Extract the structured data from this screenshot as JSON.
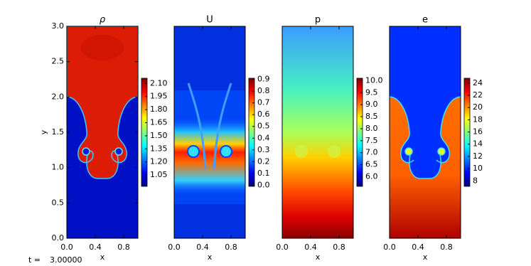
{
  "chart_data": [
    {
      "type": "heatmap",
      "title": "ρ",
      "xlabel": "x",
      "ylabel": "y",
      "colormap": "jet",
      "xlim": [
        0,
        1
      ],
      "ylim": [
        0,
        3
      ],
      "xticks": [
        {
          "value": 0,
          "label": "0.0"
        },
        {
          "value": 0.4,
          "label": "0.4"
        },
        {
          "value": 0.8,
          "label": "0.8"
        }
      ],
      "yticks": [
        {
          "value": 0,
          "label": "0.0"
        },
        0.5,
        {
          "value": 1,
          "label": "1.0"
        },
        1.5,
        {
          "value": 2,
          "label": "2.0"
        },
        2.5,
        {
          "value": 3,
          "label": "3.0"
        }
      ],
      "clim": [
        0.92,
        2.16
      ],
      "cticks": [
        {
          "value": 2.1,
          "label": "2.10"
        },
        1.95,
        {
          "value": 1.8,
          "label": "1.80"
        },
        1.65,
        {
          "value": 1.5,
          "label": "1.50"
        },
        1.35,
        {
          "value": 1.2,
          "label": "1.20"
        },
        1.05
      ]
    },
    {
      "type": "heatmap",
      "title": "U",
      "xlabel": "x",
      "colormap": "jet",
      "xlim": [
        0,
        1
      ],
      "ylim": [
        0,
        3
      ],
      "xticks": [
        {
          "value": 0,
          "label": "0.0"
        },
        {
          "value": 0.4,
          "label": "0.4"
        },
        {
          "value": 0.8,
          "label": "0.8"
        }
      ],
      "clim": [
        -0.01,
        0.91
      ],
      "cticks": [
        0.9,
        0.8,
        0.7,
        0.6,
        0.5,
        0.4,
        0.3,
        0.2,
        0.1,
        {
          "value": 0,
          "label": "0.0"
        }
      ]
    },
    {
      "type": "heatmap",
      "title": "p",
      "xlabel": "x",
      "colormap": "jet",
      "xlim": [
        0,
        1
      ],
      "ylim": [
        0,
        3
      ],
      "xticks": [
        {
          "value": 0,
          "label": "0.0"
        },
        {
          "value": 0.4,
          "label": "0.4"
        },
        {
          "value": 0.8,
          "label": "0.8"
        }
      ],
      "clim": [
        5.6,
        10.1
      ],
      "cticks": [
        {
          "value": 10,
          "label": "10.0"
        },
        9.5,
        {
          "value": 9,
          "label": "9.0"
        },
        8.5,
        {
          "value": 8,
          "label": "8.0"
        },
        7.5,
        {
          "value": 7,
          "label": "7.0"
        },
        6.5,
        {
          "value": 6,
          "label": "6.0"
        }
      ]
    },
    {
      "type": "heatmap",
      "title": "e",
      "xlabel": "x",
      "colormap": "jet",
      "xlim": [
        0,
        1
      ],
      "ylim": [
        0,
        3
      ],
      "xticks": [
        {
          "value": 0,
          "label": "0.0"
        },
        {
          "value": 0.4,
          "label": "0.4"
        },
        {
          "value": 0.8,
          "label": "0.8"
        }
      ],
      "clim": [
        7.1,
        24.8
      ],
      "cticks": [
        24,
        22,
        20,
        18,
        16,
        14,
        12,
        10,
        8
      ]
    }
  ],
  "footer": {
    "label": "t =",
    "time": "3.00000"
  }
}
